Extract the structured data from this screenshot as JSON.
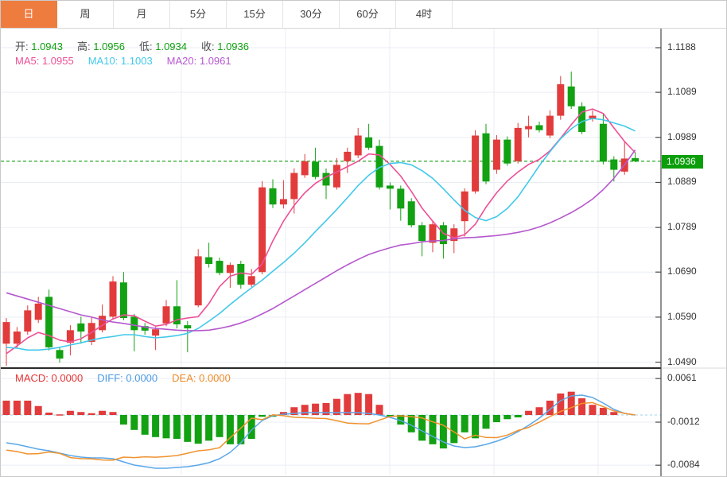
{
  "tabs": [
    {
      "label": "日",
      "active": true
    },
    {
      "label": "周",
      "active": false
    },
    {
      "label": "月",
      "active": false
    },
    {
      "label": "5分",
      "active": false
    },
    {
      "label": "15分",
      "active": false
    },
    {
      "label": "30分",
      "active": false
    },
    {
      "label": "60分",
      "active": false
    },
    {
      "label": "4时",
      "active": false
    }
  ],
  "colors": {
    "up": "#e23b3b",
    "down": "#12a112",
    "ma5": "#ee4f96",
    "ma10": "#41c8ea",
    "ma20": "#b558ce",
    "ohlc_value": "#10a010",
    "label_text": "#4a4a4a",
    "diff_line": "#5aa7e8",
    "dea_line": "#f0922e",
    "macd_label": "#e83333",
    "diff_label": "#4a9be5",
    "dea_label": "#f08a28",
    "tab_active_bg": "#ef7c3f",
    "price_tag_bg": "#0b9e0b",
    "grid": "#e9eef5",
    "axis_line": "#4a4a4a",
    "price_dash": "#0f9e0f",
    "zero_dash": "#bfe2f0",
    "separator_dark": "#2b2b2b"
  },
  "ohlc_legend": {
    "items": [
      {
        "key": "open",
        "label": "开:",
        "value": "1.0943"
      },
      {
        "key": "high",
        "label": "高:",
        "value": "1.0956"
      },
      {
        "key": "low",
        "label": "低:",
        "value": "1.0934"
      },
      {
        "key": "close",
        "label": "收:",
        "value": "1.0936"
      }
    ]
  },
  "ma_legend": [
    {
      "key": "ma5",
      "label": "MA5:",
      "value": "1.0955",
      "color": "#ee4f96"
    },
    {
      "key": "ma10",
      "label": "MA10:",
      "value": "1.1003",
      "color": "#41c8ea"
    },
    {
      "key": "ma20",
      "label": "MA20:",
      "value": "1.0961",
      "color": "#b558ce"
    }
  ],
  "macd_legend": [
    {
      "key": "macd",
      "label": "MACD:",
      "value": "0.0000",
      "color": "#e83333"
    },
    {
      "key": "diff",
      "label": "DIFF:",
      "value": "0.0000",
      "color": "#4a9be5"
    },
    {
      "key": "dea",
      "label": "DEA:",
      "value": "0.0000",
      "color": "#f08a28"
    }
  ],
  "price_axis": {
    "ticks": [
      "1.1188",
      "1.1089",
      "1.0989",
      "1.0889",
      "1.0789",
      "1.0690",
      "1.0590",
      "1.0490"
    ],
    "current": "1.0936"
  },
  "macd_axis": {
    "ticks": [
      "0.0061",
      "-0.0012",
      "-0.0084"
    ]
  },
  "chart_data": [
    {
      "type": "candlestick",
      "title": "EURUSD daily candlestick panel",
      "ylim": [
        1.047,
        1.121
      ],
      "y_ticks": [
        1.1188,
        1.1089,
        1.0989,
        1.0889,
        1.0789,
        1.069,
        1.059,
        1.049
      ],
      "current_price": 1.0936,
      "legend_position": "top-left",
      "grid": true,
      "candles_ohlc": [
        [
          1.0531,
          1.0588,
          1.0482,
          1.0579
        ],
        [
          1.0531,
          1.0568,
          1.0521,
          1.0558
        ],
        [
          1.0558,
          1.0616,
          1.0551,
          1.0605
        ],
        [
          1.0584,
          1.0635,
          1.0577,
          1.062
        ],
        [
          1.0635,
          1.0651,
          1.0516,
          1.0523
        ],
        [
          1.0517,
          1.0524,
          1.0489,
          1.0498
        ],
        [
          1.0533,
          1.0572,
          1.0505,
          1.0561
        ],
        [
          1.0576,
          1.0591,
          1.0531,
          1.0558
        ],
        [
          1.0535,
          1.0591,
          1.0528,
          1.0577
        ],
        [
          1.0561,
          1.0618,
          1.0556,
          1.0593
        ],
        [
          1.0591,
          1.0681,
          1.0586,
          1.0669
        ],
        [
          1.0667,
          1.069,
          1.0583,
          1.0588
        ],
        [
          1.0591,
          1.0597,
          1.0514,
          1.0561
        ],
        [
          1.057,
          1.0577,
          1.0551,
          1.056
        ],
        [
          1.0549,
          1.0568,
          1.0517,
          1.0563
        ],
        [
          1.0576,
          1.0628,
          1.057,
          1.0614
        ],
        [
          1.0614,
          1.0672,
          1.0565,
          1.0574
        ],
        [
          1.0572,
          1.0581,
          1.0512,
          1.0565
        ],
        [
          1.0616,
          1.0741,
          1.0612,
          1.0725
        ],
        [
          1.0723,
          1.0755,
          1.07,
          1.0708
        ],
        [
          1.0715,
          1.0722,
          1.0683,
          1.0688
        ],
        [
          1.0688,
          1.0711,
          1.0655,
          1.0706
        ],
        [
          1.0708,
          1.0715,
          1.0653,
          1.0662
        ],
        [
          1.0662,
          1.0697,
          1.0657,
          1.0681
        ],
        [
          1.069,
          1.0892,
          1.0685,
          1.0878
        ],
        [
          1.0876,
          1.0896,
          1.0832,
          1.084
        ],
        [
          1.084,
          1.0894,
          1.0831,
          1.0852
        ],
        [
          1.0852,
          1.092,
          1.082,
          1.091
        ],
        [
          1.0905,
          1.0952,
          1.0899,
          1.0936
        ],
        [
          1.0935,
          1.0966,
          1.0896,
          1.0901
        ],
        [
          1.091,
          1.092,
          1.0852,
          1.0882
        ],
        [
          1.0878,
          1.0943,
          1.0873,
          1.0928
        ],
        [
          1.0936,
          1.0966,
          1.091,
          1.0957
        ],
        [
          1.0949,
          1.101,
          1.0943,
          1.0993
        ],
        [
          1.0989,
          1.1019,
          1.0961,
          1.0966
        ],
        [
          1.097,
          1.0984,
          1.0873,
          1.0878
        ],
        [
          1.0882,
          1.0889,
          1.0829,
          1.0875
        ],
        [
          1.0875,
          1.0882,
          1.0804,
          1.0831
        ],
        [
          1.0847,
          1.0854,
          1.0789,
          1.0794
        ],
        [
          1.0794,
          1.0801,
          1.0725,
          1.0759
        ],
        [
          1.0755,
          1.0804,
          1.0734,
          1.0796
        ],
        [
          1.0794,
          1.0801,
          1.072,
          1.0752
        ],
        [
          1.0759,
          1.0796,
          1.0732,
          1.0787
        ],
        [
          1.0803,
          1.0876,
          1.0769,
          1.0869
        ],
        [
          1.0869,
          1.1005,
          1.0864,
          1.0993
        ],
        [
          1.0998,
          1.1019,
          1.0885,
          1.0891
        ],
        [
          1.0917,
          1.0994,
          1.0908,
          1.0984
        ],
        [
          1.0984,
          1.0991,
          1.0926,
          1.0931
        ],
        [
          1.0936,
          1.1021,
          1.0931,
          1.101
        ],
        [
          1.1007,
          1.1037,
          1.0989,
          1.1014
        ],
        [
          1.1016,
          1.1024,
          1.1,
          1.1005
        ],
        [
          1.0993,
          1.1049,
          1.0987,
          1.1037
        ],
        [
          1.1037,
          1.1125,
          1.1028,
          1.1107
        ],
        [
          1.1102,
          1.1135,
          1.1052,
          1.1058
        ],
        [
          1.1058,
          1.1067,
          1.0996,
          1.1001
        ],
        [
          1.1031,
          1.1049,
          1.1024,
          1.1037
        ],
        [
          1.1019,
          1.104,
          1.0929,
          1.0935
        ],
        [
          1.094,
          1.0947,
          1.0891,
          1.0917
        ],
        [
          1.0913,
          1.098,
          1.0906,
          1.0942
        ],
        [
          1.0943,
          1.0956,
          1.0934,
          1.0936
        ]
      ],
      "series": [
        {
          "name": "MA5",
          "values": [
            1.0509,
            1.0526,
            1.0544,
            1.0556,
            1.0549,
            1.0539,
            1.0535,
            1.0542,
            1.0556,
            1.0572,
            1.0586,
            1.0595,
            1.0593,
            1.0581,
            1.057,
            1.0574,
            1.0584,
            1.0588,
            1.0591,
            1.062,
            1.0658,
            1.0681,
            1.0688,
            1.0685,
            1.0708,
            1.0759,
            1.0803,
            1.0838,
            1.0866,
            1.0887,
            1.0901,
            1.0912,
            1.0924,
            1.0936,
            1.0952,
            1.095,
            1.0929,
            1.0903,
            1.0869,
            1.0832,
            1.0803,
            1.0776,
            1.0766,
            1.0773,
            1.0796,
            1.0834,
            1.0866,
            1.0892,
            1.0912,
            1.0929,
            1.094,
            1.0959,
            1.0987,
            1.1017,
            1.1045,
            1.1052,
            1.1042,
            1.101,
            1.098,
            1.0955
          ]
        },
        {
          "name": "MA10",
          "values": [
            1.0523,
            1.0521,
            1.0517,
            1.0517,
            1.0519,
            1.0523,
            1.0528,
            1.0533,
            1.0539,
            1.0544,
            1.0547,
            1.0551,
            1.0551,
            1.0547,
            1.0544,
            1.0546,
            1.0549,
            1.0554,
            1.0565,
            1.0581,
            1.0598,
            1.0618,
            1.0637,
            1.0655,
            1.0672,
            1.0692,
            1.0711,
            1.0732,
            1.0755,
            1.078,
            1.0804,
            1.0829,
            1.0855,
            1.0882,
            1.0905,
            1.0922,
            1.0931,
            1.0933,
            1.0928,
            1.0915,
            1.0898,
            1.0875,
            1.085,
            1.0827,
            1.0811,
            1.0804,
            1.0813,
            1.0831,
            1.0857,
            1.0891,
            1.0926,
            1.0957,
            1.0986,
            1.1008,
            1.1024,
            1.1031,
            1.1028,
            1.1021,
            1.1014,
            1.1003
          ]
        },
        {
          "name": "MA20",
          "values": [
            1.0644,
            1.0637,
            1.063,
            1.0623,
            1.0616,
            1.0609,
            1.0602,
            1.0595,
            1.059,
            1.0584,
            1.0579,
            1.0576,
            1.0572,
            1.0568,
            1.0565,
            1.0563,
            1.0561,
            1.056,
            1.056,
            1.0561,
            1.0565,
            1.057,
            1.0577,
            1.0586,
            1.0597,
            1.0609,
            1.0623,
            1.0637,
            1.0651,
            1.0665,
            1.0679,
            1.0693,
            1.0706,
            1.0718,
            1.0729,
            1.0737,
            1.0744,
            1.075,
            1.0753,
            1.0757,
            1.0759,
            1.076,
            1.0764,
            1.0766,
            1.0767,
            1.0769,
            1.0771,
            1.0774,
            1.0778,
            1.0783,
            1.079,
            1.0799,
            1.081,
            1.0822,
            1.0836,
            1.0852,
            1.0873,
            1.0898,
            1.0928,
            1.0961
          ]
        }
      ]
    },
    {
      "type": "bar",
      "title": "MACD panel",
      "ylim": [
        -0.0105,
        0.0075
      ],
      "y_ticks": [
        0.0061,
        -0.0012,
        -0.0084
      ],
      "histogram": [
        0.0024,
        0.0024,
        0.0024,
        0.0015,
        0.0004,
        0.0001,
        0.0007,
        0.0005,
        0.0003,
        0.0007,
        0.0005,
        -0.0016,
        -0.0025,
        -0.0033,
        -0.0037,
        -0.0039,
        -0.004,
        -0.0045,
        -0.0048,
        -0.0043,
        -0.0037,
        -0.0049,
        -0.0049,
        -0.004,
        -0.0003,
        -0.0003,
        0.0005,
        0.0013,
        0.0017,
        0.0019,
        0.002,
        0.0027,
        0.0035,
        0.0037,
        0.0035,
        0.0017,
        -0.0003,
        -0.0016,
        -0.0029,
        -0.0043,
        -0.0049,
        -0.0056,
        -0.0047,
        -0.0029,
        -0.0039,
        -0.0023,
        -0.0012,
        -0.0007,
        -0.0004,
        0.0007,
        0.0013,
        0.0024,
        0.0036,
        0.0039,
        0.0028,
        0.0017,
        0.0012,
        0.0005,
        0.0,
        0.0
      ],
      "series": [
        {
          "name": "DIFF",
          "values": [
            -0.00466,
            -0.00492,
            -0.00532,
            -0.00572,
            -0.00599,
            -0.00638,
            -0.00678,
            -0.00705,
            -0.00718,
            -0.00718,
            -0.00732,
            -0.00785,
            -0.00838,
            -0.00865,
            -0.00891,
            -0.00891,
            -0.00878,
            -0.00865,
            -0.00838,
            -0.00798,
            -0.00732,
            -0.00625,
            -0.00466,
            -0.00253,
            -0.00093,
            -0.00013,
            0.00013,
            0.00027,
            0.0004,
            0.0004,
            0.0004,
            0.0004,
            0.0004,
            0.0004,
            0.00027,
            0.0,
            -0.0004,
            -0.00093,
            -0.00173,
            -0.00266,
            -0.00359,
            -0.00452,
            -0.00519,
            -0.00545,
            -0.00532,
            -0.00492,
            -0.00439,
            -0.00372,
            -0.00279,
            -0.00173,
            -0.00053,
            0.00093,
            0.00239,
            0.00319,
            0.00333,
            0.00293,
            0.002,
            0.00093,
            0.00027,
            0.0
          ]
        },
        {
          "name": "DEA",
          "values": [
            -0.00586,
            -0.00612,
            -0.00652,
            -0.00647,
            -0.00619,
            -0.00643,
            -0.00713,
            -0.0073,
            -0.00733,
            -0.00753,
            -0.00757,
            -0.00705,
            -0.00713,
            -0.007,
            -0.00706,
            -0.00696,
            -0.00678,
            -0.0064,
            -0.00598,
            -0.00583,
            -0.00547,
            -0.0038,
            -0.00221,
            -0.00053,
            -0.00078,
            2e-05,
            -0.00012,
            -0.00038,
            -0.00045,
            -0.00055,
            -0.0006,
            -0.00095,
            -0.00135,
            -0.00145,
            -0.00148,
            -0.00085,
            -0.00025,
            -0.00013,
            -0.00028,
            -0.00051,
            -0.00114,
            -0.00172,
            -0.00284,
            -0.004,
            -0.00337,
            -0.00377,
            -0.00379,
            -0.00337,
            -0.00259,
            -0.00208,
            -0.00118,
            -0.00027,
            0.00059,
            0.00124,
            0.00193,
            0.00208,
            0.0014,
            0.00068,
            0.00027,
            0.0
          ]
        }
      ]
    }
  ]
}
